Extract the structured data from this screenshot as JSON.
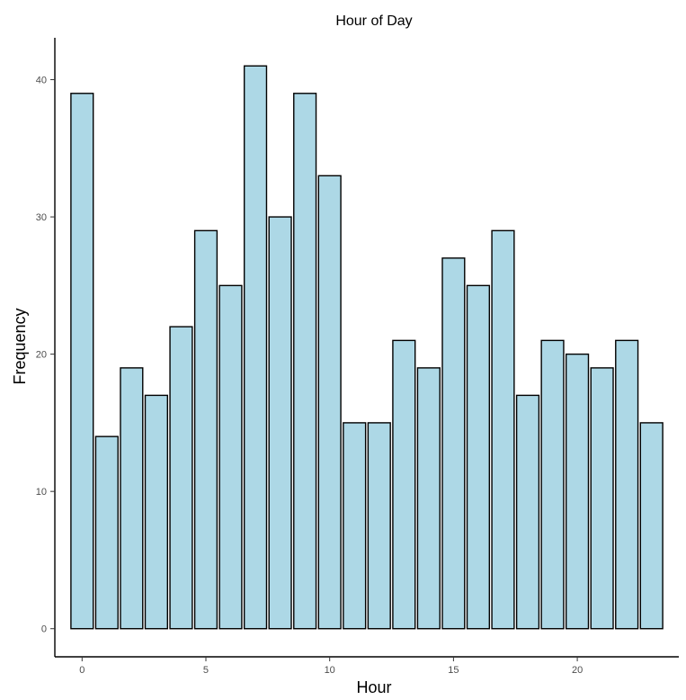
{
  "chart_data": {
    "type": "bar",
    "title": "Hour of Day",
    "xlabel": "Hour",
    "ylabel": "Frequency",
    "categories": [
      0,
      1,
      2,
      3,
      4,
      5,
      6,
      7,
      8,
      9,
      10,
      11,
      12,
      13,
      14,
      15,
      16,
      17,
      18,
      19,
      20,
      21,
      22,
      23
    ],
    "values": [
      39,
      14,
      19,
      17,
      22,
      29,
      25,
      41,
      30,
      39,
      33,
      15,
      15,
      21,
      19,
      27,
      25,
      29,
      17,
      21,
      20,
      19,
      21,
      15
    ],
    "xlim": [
      -1.1,
      24.1
    ],
    "ylim": [
      -2.05,
      43.05
    ],
    "xticks": [
      0,
      5,
      10,
      15,
      20
    ],
    "yticks": [
      0,
      10,
      20,
      30,
      40
    ],
    "grid": false,
    "legend": "none",
    "colors": {
      "bar_fill": "#add8e6",
      "bar_stroke": "#000000",
      "axis": "#000000"
    }
  }
}
